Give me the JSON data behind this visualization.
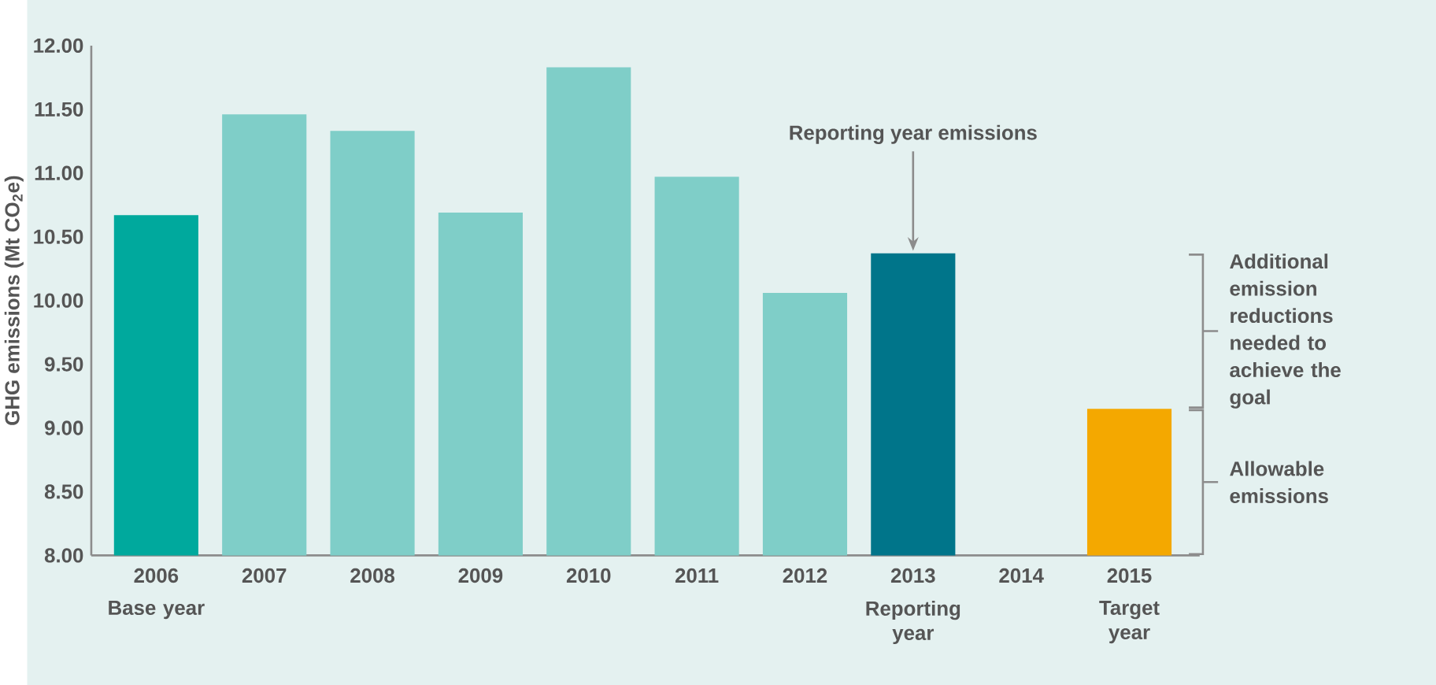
{
  "chart_data": {
    "type": "bar",
    "ylabel": "GHG emissions (Mt CO$_{2}$e)",
    "categories": [
      "2006",
      "2007",
      "2008",
      "2009",
      "2010",
      "2011",
      "2012",
      "2013",
      "2014",
      "2015"
    ],
    "values": [
      10.67,
      11.46,
      11.33,
      10.69,
      11.83,
      10.97,
      10.06,
      10.37,
      null,
      9.15
    ],
    "colors": [
      "#00a99d",
      "#7fcec8",
      "#7fcec8",
      "#7fcec8",
      "#7fcec8",
      "#7fcec8",
      "#7fcec8",
      "#00758a",
      null,
      "#f4a800"
    ],
    "ylim": [
      8,
      12
    ],
    "yticks": [
      {
        "value": 8,
        "label": "8.00"
      },
      {
        "value": 8.5,
        "label": "8.50"
      },
      {
        "value": 9,
        "label": "9.00"
      },
      {
        "value": 9.5,
        "label": "9.50"
      },
      {
        "value": 10,
        "label": "10.00"
      },
      {
        "value": 10.5,
        "label": "10.50"
      },
      {
        "value": 11,
        "label": "11.00"
      },
      {
        "value": 11.5,
        "label": "11.50"
      },
      {
        "value": 12,
        "label": "12.00"
      }
    ],
    "annotations": [
      "Reporting year emissions",
      "Base year",
      "Reporting year",
      "Target year",
      "Additional emission reductions needed to achieve the goal",
      "Allowable emissions"
    ],
    "grid": false
  }
}
